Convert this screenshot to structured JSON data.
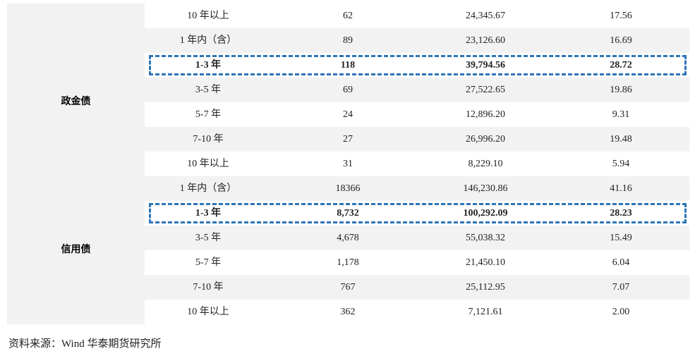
{
  "table": {
    "top_rows": [
      [
        "10 年以上",
        "62",
        "24,345.67",
        "17.56"
      ]
    ],
    "groups": [
      {
        "label": "政金债",
        "highlight_row": 1,
        "rows": [
          [
            "1 年内（含）",
            "89",
            "23,126.60",
            "16.69"
          ],
          [
            "1-3 年",
            "118",
            "39,794.56",
            "28.72"
          ],
          [
            "3-5 年",
            "69",
            "27,522.65",
            "19.86"
          ],
          [
            "5-7 年",
            "24",
            "12,896.20",
            "9.31"
          ],
          [
            "7-10 年",
            "27",
            "26,996.20",
            "19.48"
          ],
          [
            "10 年以上",
            "31",
            "8,229.10",
            "5.94"
          ]
        ]
      },
      {
        "label": "信用债",
        "highlight_row": 1,
        "rows": [
          [
            "1 年内（含）",
            "18366",
            "146,230.86",
            "41.16"
          ],
          [
            "1-3 年",
            "8,732",
            "100,292.09",
            "28.23"
          ],
          [
            "3-5 年",
            "4,678",
            "55,038.32",
            "15.49"
          ],
          [
            "5-7 年",
            "1,178",
            "21,450.10",
            "6.04"
          ],
          [
            "7-10 年",
            "767",
            "25,112.95",
            "7.07"
          ],
          [
            "10 年以上",
            "362",
            "7,121.61",
            "2.00"
          ]
        ]
      }
    ]
  },
  "source": "资料来源：Wind  华泰期货研究所"
}
